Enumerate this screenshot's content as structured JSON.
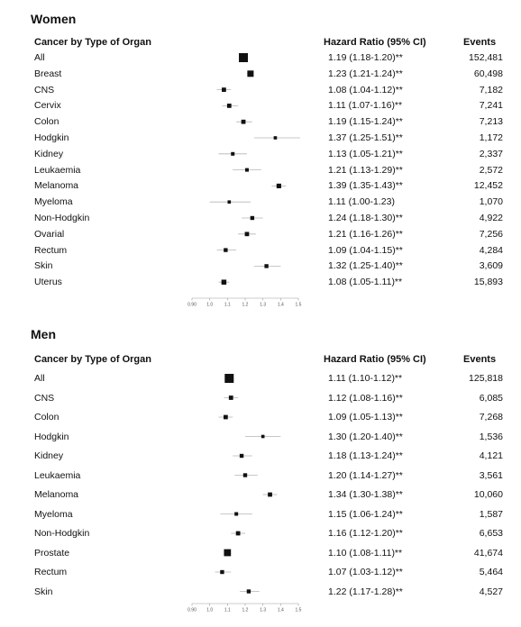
{
  "chart_data": [
    {
      "type": "forest",
      "title": "Women",
      "headers": {
        "label": "Cancer by Type of Organ",
        "hr": "Hazard Ratio (95% CI)",
        "events": "Events"
      },
      "xticks": [
        "0.90",
        "1.0",
        "1.1",
        "1.2",
        "1.3",
        "1.4",
        "1.5"
      ],
      "xlim": [
        0.9,
        1.5
      ],
      "rows": [
        {
          "label": "All",
          "hr": 1.19,
          "lo": 1.18,
          "hi": 1.2,
          "hr_text": "1.19 (1.18-1.20)**",
          "events": "152,481",
          "weight": 1.0
        },
        {
          "label": "Breast",
          "hr": 1.23,
          "lo": 1.21,
          "hi": 1.24,
          "hr_text": "1.23 (1.21-1.24)**",
          "events": "60,498",
          "weight": 0.6
        },
        {
          "label": "CNS",
          "hr": 1.08,
          "lo": 1.04,
          "hi": 1.12,
          "hr_text": "1.08 (1.04-1.12)**",
          "events": "7,182",
          "weight": 0.3
        },
        {
          "label": "Cervix",
          "hr": 1.11,
          "lo": 1.07,
          "hi": 1.16,
          "hr_text": "1.11 (1.07-1.16)**",
          "events": "7,241",
          "weight": 0.3
        },
        {
          "label": "Colon",
          "hr": 1.19,
          "lo": 1.15,
          "hi": 1.24,
          "hr_text": "1.19 (1.15-1.24)**",
          "events": "7,213",
          "weight": 0.3
        },
        {
          "label": "Hodgkin",
          "hr": 1.37,
          "lo": 1.25,
          "hi": 1.51,
          "hr_text": "1.37 (1.25-1.51)**",
          "events": "1,172",
          "weight": 0.15
        },
        {
          "label": "Kidney",
          "hr": 1.13,
          "lo": 1.05,
          "hi": 1.21,
          "hr_text": "1.13 (1.05-1.21)**",
          "events": "2,337",
          "weight": 0.2
        },
        {
          "label": "Leukaemia",
          "hr": 1.21,
          "lo": 1.13,
          "hi": 1.29,
          "hr_text": "1.21 (1.13-1.29)**",
          "events": "2,572",
          "weight": 0.2
        },
        {
          "label": "Melanoma",
          "hr": 1.39,
          "lo": 1.35,
          "hi": 1.43,
          "hr_text": "1.39 (1.35-1.43)**",
          "events": "12,452",
          "weight": 0.35
        },
        {
          "label": "Myeloma",
          "hr": 1.11,
          "lo": 1.0,
          "hi": 1.23,
          "hr_text": "1.11 (1.00-1.23)",
          "events": "1,070",
          "weight": 0.15
        },
        {
          "label": "Non-Hodgkin",
          "hr": 1.24,
          "lo": 1.18,
          "hi": 1.3,
          "hr_text": "1.24 (1.18-1.30)**",
          "events": "4,922",
          "weight": 0.25
        },
        {
          "label": "Ovarial",
          "hr": 1.21,
          "lo": 1.16,
          "hi": 1.26,
          "hr_text": "1.21 (1.16-1.26)**",
          "events": "7,256",
          "weight": 0.3
        },
        {
          "label": "Rectum",
          "hr": 1.09,
          "lo": 1.04,
          "hi": 1.15,
          "hr_text": "1.09 (1.04-1.15)**",
          "events": "4,284",
          "weight": 0.25
        },
        {
          "label": "Skin",
          "hr": 1.32,
          "lo": 1.25,
          "hi": 1.4,
          "hr_text": "1.32 (1.25-1.40)**",
          "events": "3,609",
          "weight": 0.25
        },
        {
          "label": "Uterus",
          "hr": 1.08,
          "lo": 1.05,
          "hi": 1.11,
          "hr_text": "1.08 (1.05-1.11)**",
          "events": "15,893",
          "weight": 0.4
        }
      ]
    },
    {
      "type": "forest",
      "title": "Men",
      "headers": {
        "label": "Cancer by Type of Organ",
        "hr": "Hazard Ratio (95% CI)",
        "events": "Events"
      },
      "xticks": [
        "0.90",
        "1.0",
        "1.1",
        "1.2",
        "1.3",
        "1.4",
        "1.5"
      ],
      "xlim": [
        0.9,
        1.5
      ],
      "rows": [
        {
          "label": "All",
          "hr": 1.11,
          "lo": 1.1,
          "hi": 1.12,
          "hr_text": "1.11 (1.10-1.12)**",
          "events": "125,818",
          "weight": 1.0
        },
        {
          "label": "CNS",
          "hr": 1.12,
          "lo": 1.08,
          "hi": 1.16,
          "hr_text": "1.12 (1.08-1.16)**",
          "events": "6,085",
          "weight": 0.3
        },
        {
          "label": "Colon",
          "hr": 1.09,
          "lo": 1.05,
          "hi": 1.13,
          "hr_text": "1.09 (1.05-1.13)**",
          "events": "7,268",
          "weight": 0.3
        },
        {
          "label": "Hodgkin",
          "hr": 1.3,
          "lo": 1.2,
          "hi": 1.4,
          "hr_text": "1.30 (1.20-1.40)**",
          "events": "1,536",
          "weight": 0.15
        },
        {
          "label": "Kidney",
          "hr": 1.18,
          "lo": 1.13,
          "hi": 1.24,
          "hr_text": "1.18 (1.13-1.24)**",
          "events": "4,121",
          "weight": 0.25
        },
        {
          "label": "Leukaemia",
          "hr": 1.2,
          "lo": 1.14,
          "hi": 1.27,
          "hr_text": "1.20 (1.14-1.27)**",
          "events": "3,561",
          "weight": 0.25
        },
        {
          "label": "Melanoma",
          "hr": 1.34,
          "lo": 1.3,
          "hi": 1.38,
          "hr_text": "1.34 (1.30-1.38)**",
          "events": "10,060",
          "weight": 0.3
        },
        {
          "label": "Myeloma",
          "hr": 1.15,
          "lo": 1.06,
          "hi": 1.24,
          "hr_text": "1.15 (1.06-1.24)**",
          "events": "1,587",
          "weight": 0.2
        },
        {
          "label": "Non-Hodgkin",
          "hr": 1.16,
          "lo": 1.12,
          "hi": 1.2,
          "hr_text": "1.16 (1.12-1.20)**",
          "events": "6,653",
          "weight": 0.3
        },
        {
          "label": "Prostate",
          "hr": 1.1,
          "lo": 1.08,
          "hi": 1.11,
          "hr_text": "1.10 (1.08-1.11)**",
          "events": "41,674",
          "weight": 0.7
        },
        {
          "label": "Rectum",
          "hr": 1.07,
          "lo": 1.03,
          "hi": 1.12,
          "hr_text": "1.07 (1.03-1.12)**",
          "events": "5,464",
          "weight": 0.25
        },
        {
          "label": "Skin",
          "hr": 1.22,
          "lo": 1.17,
          "hi": 1.28,
          "hr_text": "1.22 (1.17-1.28)**",
          "events": "4,527",
          "weight": 0.25
        }
      ]
    }
  ]
}
